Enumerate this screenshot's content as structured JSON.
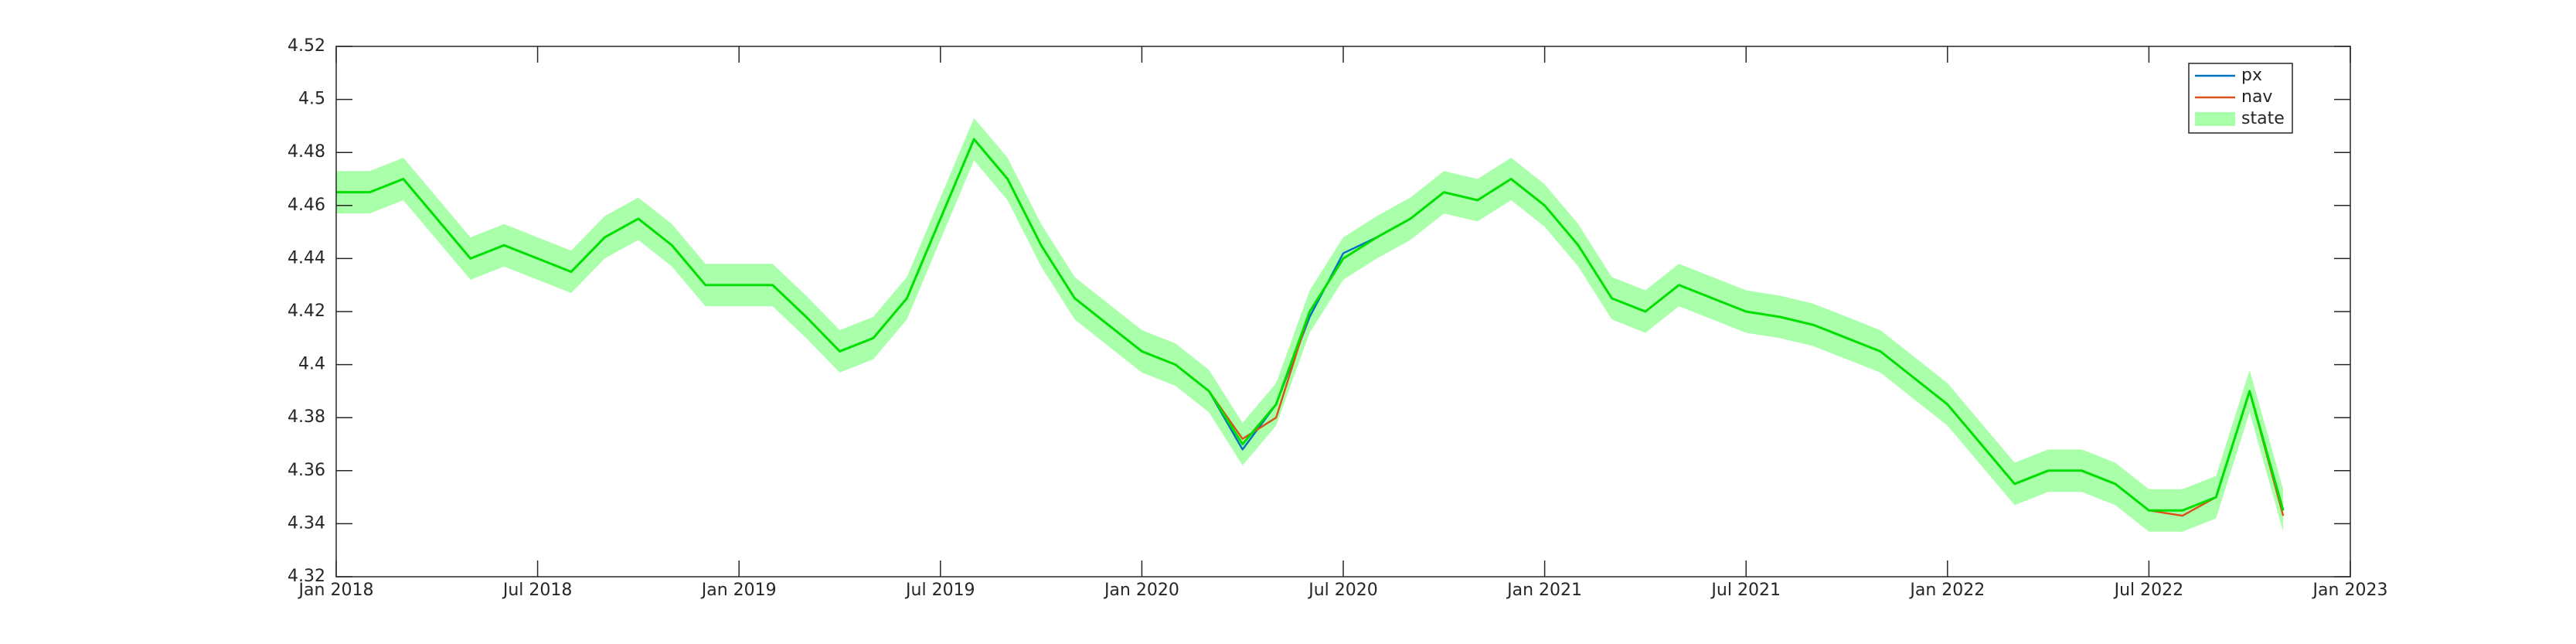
{
  "chart_data": {
    "type": "line",
    "x": [
      "2018-01",
      "2018-02",
      "2018-03",
      "2018-04",
      "2018-05",
      "2018-06",
      "2018-07",
      "2018-08",
      "2018-09",
      "2018-10",
      "2018-11",
      "2018-12",
      "2019-01",
      "2019-02",
      "2019-03",
      "2019-04",
      "2019-05",
      "2019-06",
      "2019-07",
      "2019-08",
      "2019-09",
      "2019-10",
      "2019-11",
      "2019-12",
      "2020-01",
      "2020-02",
      "2020-03",
      "2020-04",
      "2020-05",
      "2020-06",
      "2020-07",
      "2020-08",
      "2020-09",
      "2020-10",
      "2020-11",
      "2020-12",
      "2021-01",
      "2021-02",
      "2021-03",
      "2021-04",
      "2021-05",
      "2021-06",
      "2021-07",
      "2021-08",
      "2021-09",
      "2021-10",
      "2021-11",
      "2021-12",
      "2022-01",
      "2022-02",
      "2022-03",
      "2022-04",
      "2022-05",
      "2022-06",
      "2022-07",
      "2022-08",
      "2022-09",
      "2022-10",
      "2022-11"
    ],
    "series": [
      {
        "name": "px",
        "color": "#0072bd",
        "values": [
          4.465,
          4.465,
          4.47,
          4.455,
          4.44,
          4.445,
          4.44,
          4.435,
          4.448,
          4.455,
          4.445,
          4.43,
          4.43,
          4.43,
          4.418,
          4.405,
          4.41,
          4.425,
          4.455,
          4.485,
          4.47,
          4.445,
          4.425,
          4.415,
          4.405,
          4.4,
          4.39,
          4.368,
          4.385,
          4.418,
          4.442,
          4.448,
          4.455,
          4.465,
          4.462,
          4.47,
          4.46,
          4.445,
          4.425,
          4.42,
          4.43,
          4.425,
          4.42,
          4.418,
          4.415,
          4.41,
          4.405,
          4.395,
          4.385,
          4.37,
          4.355,
          4.36,
          4.36,
          4.355,
          4.345,
          4.345,
          4.35,
          4.39,
          4.345
        ]
      },
      {
        "name": "nav",
        "color": "#d95319",
        "values": [
          4.465,
          4.465,
          4.47,
          4.455,
          4.44,
          4.445,
          4.44,
          4.435,
          4.448,
          4.455,
          4.445,
          4.43,
          4.43,
          4.43,
          4.418,
          4.405,
          4.41,
          4.425,
          4.455,
          4.485,
          4.47,
          4.445,
          4.425,
          4.415,
          4.405,
          4.4,
          4.39,
          4.372,
          4.38,
          4.42,
          4.44,
          4.448,
          4.455,
          4.465,
          4.462,
          4.47,
          4.46,
          4.445,
          4.425,
          4.42,
          4.43,
          4.425,
          4.42,
          4.418,
          4.415,
          4.41,
          4.405,
          4.395,
          4.385,
          4.37,
          4.355,
          4.36,
          4.36,
          4.355,
          4.345,
          4.343,
          4.35,
          4.39,
          4.343
        ]
      },
      {
        "name": "state",
        "color": "#aaffaa",
        "line_color": "#00e000",
        "values": [
          4.465,
          4.465,
          4.47,
          4.455,
          4.44,
          4.445,
          4.44,
          4.435,
          4.448,
          4.455,
          4.445,
          4.43,
          4.43,
          4.43,
          4.418,
          4.405,
          4.41,
          4.425,
          4.455,
          4.485,
          4.47,
          4.445,
          4.425,
          4.415,
          4.405,
          4.4,
          4.39,
          4.37,
          4.385,
          4.42,
          4.44,
          4.448,
          4.455,
          4.465,
          4.462,
          4.47,
          4.46,
          4.445,
          4.425,
          4.42,
          4.43,
          4.425,
          4.42,
          4.418,
          4.415,
          4.41,
          4.405,
          4.395,
          4.385,
          4.37,
          4.355,
          4.36,
          4.36,
          4.355,
          4.345,
          4.345,
          4.35,
          4.39,
          4.345
        ],
        "lower": [
          4.457,
          4.457,
          4.462,
          4.447,
          4.432,
          4.437,
          4.432,
          4.427,
          4.44,
          4.447,
          4.437,
          4.422,
          4.422,
          4.422,
          4.41,
          4.397,
          4.402,
          4.417,
          4.447,
          4.477,
          4.462,
          4.437,
          4.417,
          4.407,
          4.397,
          4.392,
          4.382,
          4.362,
          4.377,
          4.412,
          4.432,
          4.44,
          4.447,
          4.457,
          4.454,
          4.462,
          4.452,
          4.437,
          4.417,
          4.412,
          4.422,
          4.417,
          4.412,
          4.41,
          4.407,
          4.402,
          4.397,
          4.387,
          4.377,
          4.362,
          4.347,
          4.352,
          4.352,
          4.347,
          4.337,
          4.337,
          4.342,
          4.382,
          4.337
        ],
        "upper": [
          4.473,
          4.473,
          4.478,
          4.463,
          4.448,
          4.453,
          4.448,
          4.443,
          4.456,
          4.463,
          4.453,
          4.438,
          4.438,
          4.438,
          4.426,
          4.413,
          4.418,
          4.433,
          4.463,
          4.493,
          4.478,
          4.453,
          4.433,
          4.423,
          4.413,
          4.408,
          4.398,
          4.378,
          4.393,
          4.428,
          4.448,
          4.456,
          4.463,
          4.473,
          4.47,
          4.478,
          4.468,
          4.453,
          4.433,
          4.428,
          4.438,
          4.433,
          4.428,
          4.426,
          4.423,
          4.418,
          4.413,
          4.403,
          4.393,
          4.378,
          4.363,
          4.368,
          4.368,
          4.363,
          4.353,
          4.353,
          4.358,
          4.398,
          4.353
        ]
      }
    ],
    "xlim": [
      "2018-01",
      "2023-01"
    ],
    "xticks": [
      {
        "value": "2018-01",
        "label": "Jan 2018"
      },
      {
        "value": "2018-07",
        "label": "Jul 2018"
      },
      {
        "value": "2019-01",
        "label": "Jan 2019"
      },
      {
        "value": "2019-07",
        "label": "Jul 2019"
      },
      {
        "value": "2020-01",
        "label": "Jan 2020"
      },
      {
        "value": "2020-07",
        "label": "Jul 2020"
      },
      {
        "value": "2021-01",
        "label": "Jan 2021"
      },
      {
        "value": "2021-07",
        "label": "Jul 2021"
      },
      {
        "value": "2022-01",
        "label": "Jan 2022"
      },
      {
        "value": "2022-07",
        "label": "Jul 2022"
      },
      {
        "value": "2023-01",
        "label": "Jan 2023"
      }
    ],
    "ylim": [
      4.32,
      4.52
    ],
    "yticks": [
      4.32,
      4.34,
      4.36,
      4.38,
      4.4,
      4.42,
      4.44,
      4.46,
      4.48,
      4.5,
      4.52
    ],
    "legend": "top-right"
  }
}
